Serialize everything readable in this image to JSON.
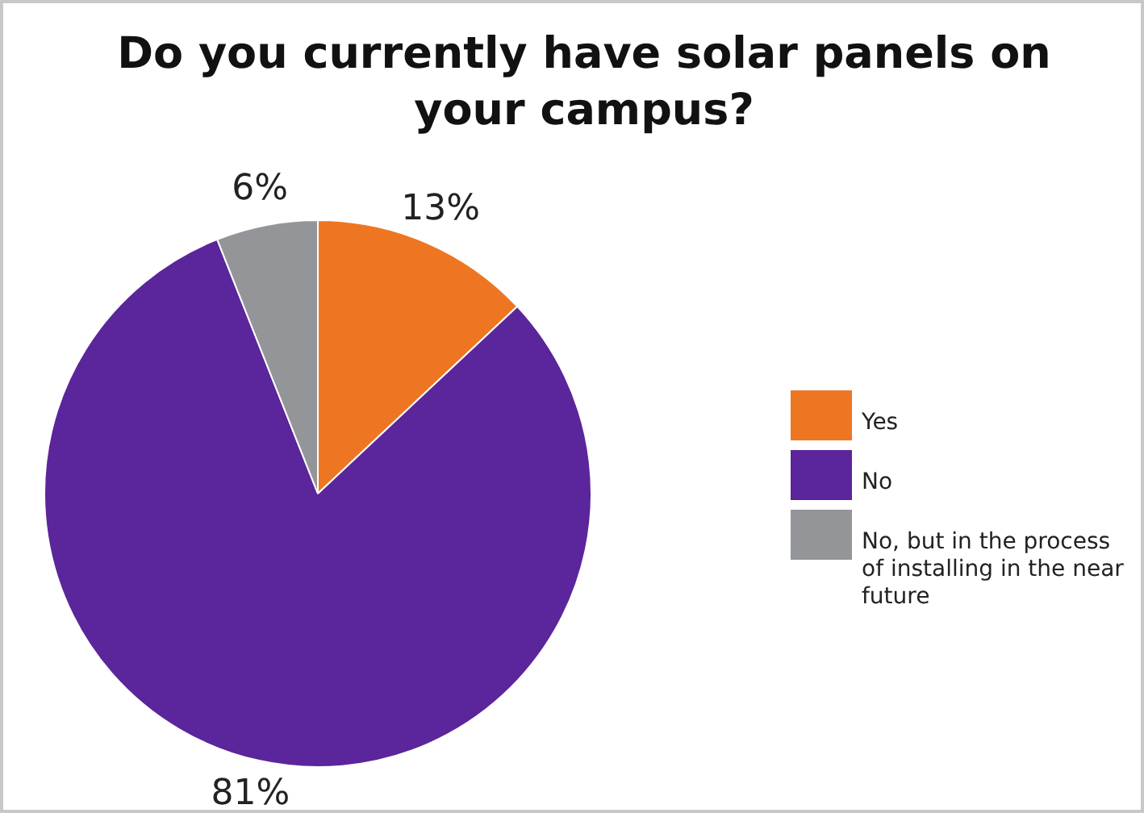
{
  "chart_data": {
    "type": "pie",
    "title": "Do you currently have solar panels on your campus?",
    "categories": [
      "Yes",
      "No",
      "No, but in the process of installing in the near future"
    ],
    "values": [
      13,
      81,
      6
    ],
    "colors": [
      "#ee7623",
      "#5b259b",
      "#939598"
    ],
    "value_labels": [
      "13%",
      "81%",
      "6%"
    ],
    "legend": "right"
  }
}
